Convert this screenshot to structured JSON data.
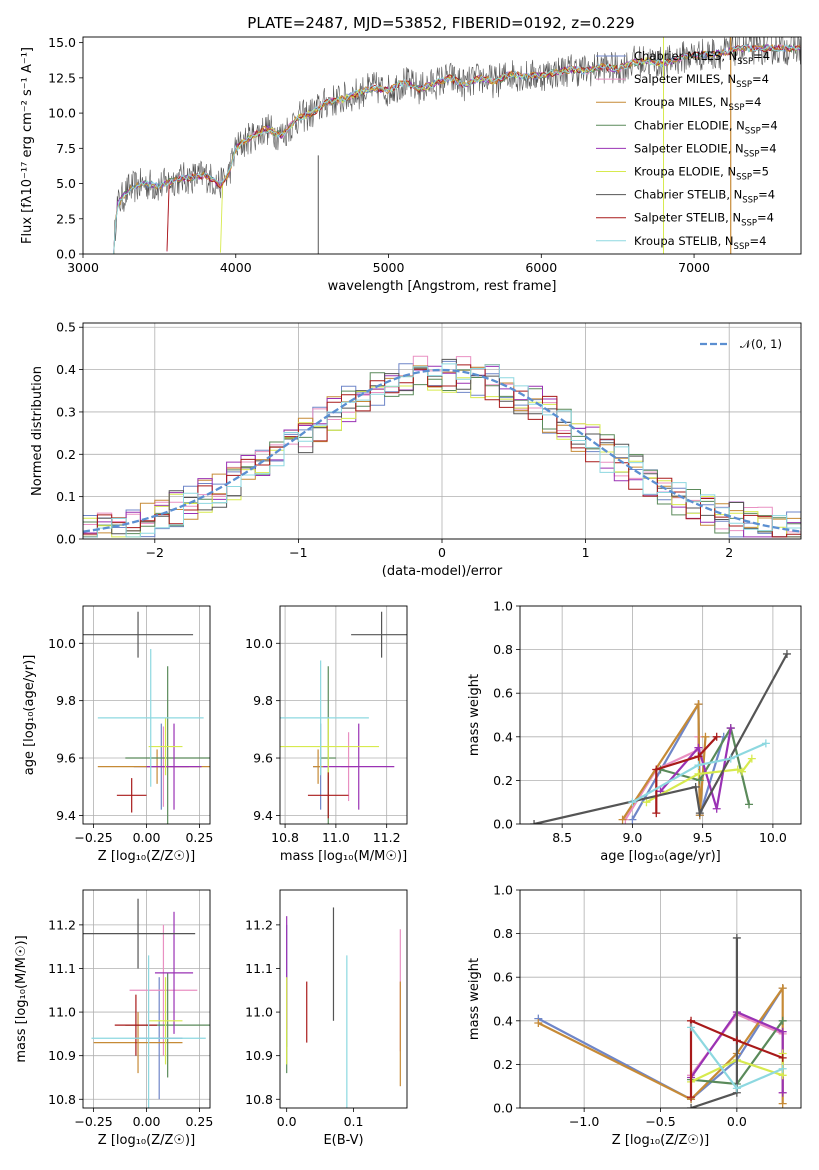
{
  "title": "PLATE=2487, MJD=53852, FIBERID=0192, z=0.229",
  "models": [
    {
      "name": "Chabrier MILES, N",
      "sub": "SSP",
      "suffix": "=4",
      "color": "#6f86c8"
    },
    {
      "name": "Salpeter MILES, N",
      "sub": "SSP",
      "suffix": "=4",
      "color": "#e990c2"
    },
    {
      "name": "Kroupa MILES, N",
      "sub": "SSP",
      "suffix": "=4",
      "color": "#c68a36"
    },
    {
      "name": "Chabrier ELODIE, N",
      "sub": "SSP",
      "suffix": "=4",
      "color": "#5a8a5a"
    },
    {
      "name": "Salpeter ELODIE, N",
      "sub": "SSP",
      "suffix": "=4",
      "color": "#9a32b4"
    },
    {
      "name": "Kroupa ELODIE, N",
      "sub": "SSP",
      "suffix": "=5",
      "color": "#d7ea4e"
    },
    {
      "name": "Chabrier STELIB, N",
      "sub": "SSP",
      "suffix": "=4",
      "color": "#555555"
    },
    {
      "name": "Salpeter STELIB, N",
      "sub": "SSP",
      "suffix": "=4",
      "color": "#a81a1a"
    },
    {
      "name": "Kroupa STELIB, N",
      "sub": "SSP",
      "suffix": "=4",
      "color": "#8dd8e0"
    }
  ],
  "chart_data": [
    {
      "id": "spectrum",
      "type": "line",
      "xlabel": "wavelength [Angstrom, rest frame]",
      "ylabel": "Flux [fλ10⁻¹⁷ erg cm⁻² s⁻¹ A⁻¹]",
      "xlim": [
        3000,
        7700
      ],
      "ylim": [
        0,
        15.4
      ],
      "xticks": [
        3000,
        4000,
        5000,
        6000,
        7000
      ],
      "yticks": [
        0.0,
        2.5,
        5.0,
        7.5,
        10.0,
        12.5,
        15.0
      ],
      "continuum": {
        "x": [
          3200,
          3220,
          3300,
          3400,
          3500,
          3600,
          3700,
          3800,
          3900,
          3950,
          4000,
          4100,
          4200,
          4300,
          4400,
          4500,
          4600,
          4700,
          4800,
          4900,
          5000,
          5100,
          5200,
          5300,
          5400,
          5500,
          5600,
          5700,
          5800,
          5900,
          6000,
          6100,
          6200,
          6300,
          6400,
          6500,
          6600,
          6700,
          6800,
          6900,
          7000,
          7100,
          7200,
          7300
        ],
        "y": [
          0.0,
          3.4,
          4.6,
          5.0,
          4.8,
          5.3,
          5.4,
          5.6,
          4.9,
          5.6,
          7.5,
          8.3,
          8.9,
          8.4,
          9.6,
          10.0,
          10.8,
          11.0,
          11.4,
          11.8,
          11.6,
          12.2,
          11.7,
          12.1,
          12.5,
          12.0,
          12.5,
          12.2,
          12.8,
          12.6,
          12.7,
          12.9,
          13.1,
          13.0,
          13.3,
          13.1,
          13.6,
          13.7,
          13.5,
          13.9,
          14.1,
          14.2,
          14.3,
          14.6
        ]
      },
      "legend_location": "upper right"
    },
    {
      "id": "residuals",
      "type": "step",
      "xlabel": "(data-model)/error",
      "ylabel": "Normed distribution",
      "xlim": [
        -2.5,
        2.5
      ],
      "ylim": [
        0,
        0.51
      ],
      "xticks": [
        -2,
        -1,
        0,
        1,
        2
      ],
      "yticks": [
        0.0,
        0.1,
        0.2,
        0.3,
        0.4,
        0.5
      ],
      "reference_label": "𝒩(0, 1)",
      "bin_width": 0.1,
      "grid": true,
      "legend_location": "upper right"
    },
    {
      "id": "age-vs-Z",
      "type": "errorbar",
      "xlabel": "Z [log₁₀(Z/Z☉)]",
      "ylabel": "age  [log₁₀(age/yr)]",
      "xlim": [
        -0.3,
        0.3
      ],
      "ylim": [
        9.37,
        10.13
      ],
      "xticks": [
        -0.25,
        0.0,
        0.25
      ],
      "yticks": [
        9.4,
        9.6,
        9.8,
        10.0
      ],
      "grid": true,
      "points": [
        {
          "x": 0.07,
          "y": 9.57,
          "xerr": 0.13,
          "yerr": 0.15
        },
        {
          "x": 0.08,
          "y": 9.57,
          "xerr": 0.12,
          "yerr": 0.14
        },
        {
          "x": 0.05,
          "y": 9.57,
          "xerr": 0.28,
          "yerr": 0.06
        },
        {
          "x": 0.1,
          "y": 9.6,
          "xerr": 0.2,
          "yerr": 0.32
        },
        {
          "x": 0.13,
          "y": 9.57,
          "xerr": 0.13,
          "yerr": 0.15
        },
        {
          "x": 0.09,
          "y": 9.64,
          "xerr": 0.08,
          "yerr": 0.1
        },
        {
          "x": -0.04,
          "y": 10.03,
          "xerr": 0.26,
          "yerr": 0.08
        },
        {
          "x": -0.07,
          "y": 9.47,
          "xerr": 0.07,
          "yerr": 0.06
        },
        {
          "x": 0.02,
          "y": 9.74,
          "xerr": 0.25,
          "yerr": 0.24
        }
      ]
    },
    {
      "id": "age-vs-mass",
      "type": "errorbar",
      "xlabel": "mass [log₁₀(M/M☉)]",
      "ylabel": "",
      "xlim": [
        10.78,
        11.28
      ],
      "ylim": [
        9.37,
        10.13
      ],
      "xticks": [
        10.8,
        11.0,
        11.2
      ],
      "yticks": [
        9.4,
        9.6,
        9.8,
        10.0
      ],
      "grid": true,
      "points": [
        {
          "x": 10.94,
          "y": 9.57,
          "xerr": 0.03,
          "yerr": 0.15
        },
        {
          "x": 11.05,
          "y": 9.57,
          "xerr": 0.03,
          "yerr": 0.12
        },
        {
          "x": 10.93,
          "y": 9.57,
          "xerr": 0.02,
          "yerr": 0.06
        },
        {
          "x": 10.97,
          "y": 9.6,
          "xerr": 0.03,
          "yerr": 0.32
        },
        {
          "x": 11.09,
          "y": 9.57,
          "xerr": 0.14,
          "yerr": 0.15
        },
        {
          "x": 10.97,
          "y": 9.64,
          "xerr": 0.2,
          "yerr": 0.1
        },
        {
          "x": 11.18,
          "y": 10.03,
          "xerr": 0.12,
          "yerr": 0.08
        },
        {
          "x": 10.97,
          "y": 9.47,
          "xerr": 0.08,
          "yerr": 0.08
        },
        {
          "x": 10.94,
          "y": 9.74,
          "xerr": 0.19,
          "yerr": 0.2
        }
      ]
    },
    {
      "id": "weight-vs-age",
      "type": "line",
      "xlabel": "age  [log₁₀(age/yr)]",
      "ylabel": "mass weight",
      "xlim": [
        8.2,
        10.2
      ],
      "ylim": [
        0,
        1.0
      ],
      "xticks": [
        8.5,
        9.0,
        9.5,
        10.0
      ],
      "yticks": [
        0.0,
        0.2,
        0.4,
        0.6,
        0.8,
        1.0
      ],
      "grid": true,
      "series": [
        {
          "x": [
            9.0,
            9.47,
            9.48,
            9.65
          ],
          "y": [
            0.02,
            0.55,
            0.04,
            0.4
          ]
        },
        {
          "x": [
            8.95,
            9.17,
            9.47,
            9.47
          ],
          "y": [
            0.02,
            0.25,
            0.34,
            0.4
          ]
        },
        {
          "x": [
            8.93,
            9.47,
            9.48,
            9.52
          ],
          "y": [
            0.02,
            0.55,
            0.04,
            0.4
          ]
        },
        {
          "x": [
            9.2,
            9.48,
            9.7,
            9.83
          ],
          "y": [
            0.25,
            0.2,
            0.44,
            0.09
          ]
        },
        {
          "x": [
            9.2,
            9.47,
            9.6,
            9.7
          ],
          "y": [
            0.15,
            0.35,
            0.07,
            0.44
          ]
        },
        {
          "x": [
            9.1,
            9.47,
            9.75,
            9.78,
            9.85
          ],
          "y": [
            0.1,
            0.23,
            0.25,
            0.24,
            0.3
          ]
        },
        {
          "x": [
            8.3,
            9.45,
            9.48,
            10.1
          ],
          "y": [
            0.0,
            0.17,
            0.05,
            0.78
          ]
        },
        {
          "x": [
            9.17,
            9.17,
            9.47,
            9.6
          ],
          "y": [
            0.05,
            0.25,
            0.31,
            0.4
          ]
        },
        {
          "x": [
            9.0,
            9.47,
            9.7,
            9.95
          ],
          "y": [
            0.1,
            0.27,
            0.3,
            0.37
          ]
        }
      ]
    },
    {
      "id": "mass-vs-Z",
      "type": "errorbar",
      "xlabel": "Z [log₁₀(Z/Z☉)]",
      "ylabel": "mass [log₁₀(M/M☉)]",
      "xlim": [
        -0.3,
        0.3
      ],
      "ylim": [
        10.78,
        11.28
      ],
      "xticks": [
        -0.25,
        0.0,
        0.25
      ],
      "yticks": [
        10.8,
        10.9,
        11.0,
        11.1,
        11.2
      ],
      "grid": true,
      "points": [
        {
          "x": 0.06,
          "y": 10.94,
          "xerr": 0.11,
          "yerr": 0.14
        },
        {
          "x": 0.08,
          "y": 11.05,
          "xerr": 0.16,
          "yerr": 0.15
        },
        {
          "x": -0.04,
          "y": 10.93,
          "xerr": 0.21,
          "yerr": 0.07
        },
        {
          "x": 0.1,
          "y": 10.97,
          "xerr": 0.2,
          "yerr": 0.12
        },
        {
          "x": 0.13,
          "y": 11.09,
          "xerr": 0.09,
          "yerr": 0.14
        },
        {
          "x": 0.09,
          "y": 10.98,
          "xerr": 0.08,
          "yerr": 0.1
        },
        {
          "x": -0.04,
          "y": 11.18,
          "xerr": 0.27,
          "yerr": 0.08
        },
        {
          "x": -0.05,
          "y": 10.97,
          "xerr": 0.1,
          "yerr": 0.07
        },
        {
          "x": 0.01,
          "y": 10.94,
          "xerr": 0.27,
          "yerr": 0.19
        }
      ]
    },
    {
      "id": "mass-vs-EBV",
      "type": "errorbar",
      "xlabel": "E(B-V)",
      "ylabel": "",
      "xlim": [
        -0.01,
        0.18
      ],
      "ylim": [
        10.78,
        11.28
      ],
      "xticks": [
        0.0,
        0.1
      ],
      "yticks": [
        10.8,
        10.9,
        11.0,
        11.1,
        11.2
      ],
      "grid": false,
      "points": [
        {
          "x": 0.0,
          "y": 11.06,
          "xerr": 0,
          "yerr": 0.14
        },
        {
          "x": 0.17,
          "y": 11.05,
          "xerr": 0,
          "yerr": 0.14
        },
        {
          "x": 0.17,
          "y": 10.95,
          "xerr": 0,
          "yerr": 0.12
        },
        {
          "x": 0.0,
          "y": 10.97,
          "xerr": 0,
          "yerr": 0.11
        },
        {
          "x": 0.0,
          "y": 11.09,
          "xerr": 0,
          "yerr": 0.13
        },
        {
          "x": 0.0,
          "y": 10.98,
          "xerr": 0,
          "yerr": 0.1
        },
        {
          "x": 0.07,
          "y": 11.11,
          "xerr": 0,
          "yerr": 0.13
        },
        {
          "x": 0.03,
          "y": 11.0,
          "xerr": 0,
          "yerr": 0.07
        },
        {
          "x": 0.09,
          "y": 10.94,
          "xerr": 0,
          "yerr": 0.19
        }
      ]
    },
    {
      "id": "weight-vs-Z",
      "type": "line",
      "xlabel": "Z [log₁₀(Z/Z☉)]",
      "ylabel": "mass weight",
      "xlim": [
        -1.42,
        0.42
      ],
      "ylim": [
        0,
        1.0
      ],
      "xticks": [
        -1.0,
        -0.5,
        0.0
      ],
      "yticks": [
        0.0,
        0.2,
        0.4,
        0.6,
        0.8,
        1.0
      ],
      "grid": true,
      "series": [
        {
          "x": [
            -1.3,
            -0.3,
            0.0,
            0.3
          ],
          "y": [
            0.41,
            0.04,
            0.22,
            0.55
          ]
        },
        {
          "x": [
            -0.3,
            0.0,
            0.3,
            0.3
          ],
          "y": [
            0.15,
            0.43,
            0.34,
            0.07
          ]
        },
        {
          "x": [
            -1.3,
            -0.3,
            0.0,
            0.3,
            0.3
          ],
          "y": [
            0.39,
            0.04,
            0.25,
            0.55,
            0.02
          ]
        },
        {
          "x": [
            -0.3,
            0.0,
            0.3
          ],
          "y": [
            0.13,
            0.11,
            0.4
          ]
        },
        {
          "x": [
            -0.3,
            0.0,
            0.3,
            0.3
          ],
          "y": [
            0.14,
            0.44,
            0.35,
            0.07
          ]
        },
        {
          "x": [
            -0.3,
            0.0,
            0.3,
            0.3
          ],
          "y": [
            0.12,
            0.22,
            0.15,
            0.25
          ]
        },
        {
          "x": [
            -0.3,
            0.0,
            0.0
          ],
          "y": [
            0.0,
            0.07,
            0.78
          ]
        },
        {
          "x": [
            -0.3,
            -0.3,
            0.0,
            0.3
          ],
          "y": [
            0.05,
            0.4,
            0.31,
            0.23
          ]
        },
        {
          "x": [
            -0.3,
            0.0,
            0.3
          ],
          "y": [
            0.37,
            0.09,
            0.18
          ]
        }
      ]
    }
  ]
}
